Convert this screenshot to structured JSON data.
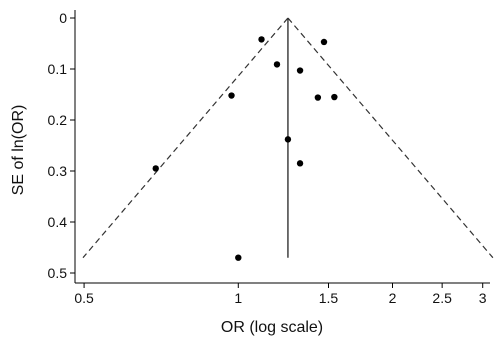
{
  "chart_data": {
    "type": "scatter",
    "title": "",
    "xlabel": "OR (log scale)",
    "ylabel": "SE of ln(OR)",
    "x_scale": "log",
    "y_reversed": true,
    "xlim": [
      0.48,
      3.1
    ],
    "ylim": [
      0,
      0.5
    ],
    "xticks": [
      {
        "value": 0.5,
        "label": "0.5"
      },
      {
        "value": 1,
        "label": "1"
      },
      {
        "value": 1.5,
        "label": "1.5"
      },
      {
        "value": 2,
        "label": "2"
      },
      {
        "value": 2.5,
        "label": "2.5"
      },
      {
        "value": 3,
        "label": "3"
      }
    ],
    "yticks": [
      {
        "value": 0,
        "label": "0"
      },
      {
        "value": 0.1,
        "label": "0.1"
      },
      {
        "value": 0.2,
        "label": "0.2"
      },
      {
        "value": 0.3,
        "label": "0.3"
      },
      {
        "value": 0.4,
        "label": "0.4"
      },
      {
        "value": 0.5,
        "label": "0.5"
      }
    ],
    "pooled_or": 1.25,
    "funnel_max_se": 0.47,
    "grid": false,
    "legend": "none",
    "colors": {
      "points": "#000000",
      "lines": "#333333",
      "axis": "#000000"
    },
    "points": [
      {
        "x": 1.11,
        "y": 0.042
      },
      {
        "x": 1.47,
        "y": 0.047
      },
      {
        "x": 1.19,
        "y": 0.091
      },
      {
        "x": 1.32,
        "y": 0.103
      },
      {
        "x": 0.97,
        "y": 0.152
      },
      {
        "x": 1.43,
        "y": 0.156
      },
      {
        "x": 1.54,
        "y": 0.155
      },
      {
        "x": 1.25,
        "y": 0.238
      },
      {
        "x": 1.32,
        "y": 0.285
      },
      {
        "x": 0.69,
        "y": 0.295
      },
      {
        "x": 1.0,
        "y": 0.47
      }
    ]
  }
}
